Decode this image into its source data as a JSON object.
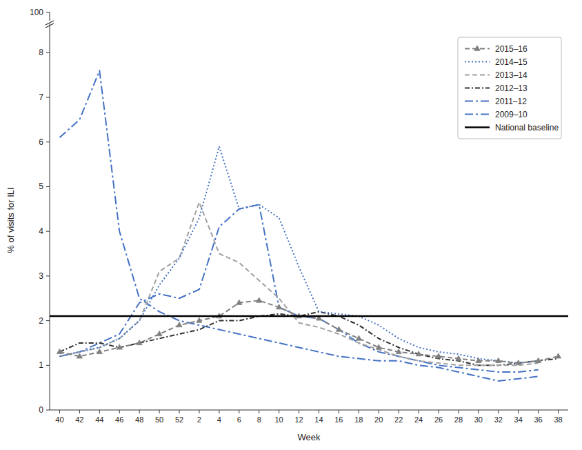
{
  "chart_data": {
    "type": "line",
    "xlabel": "Week",
    "ylabel": "% of visits for ILI",
    "categories": [
      "40",
      "42",
      "44",
      "46",
      "48",
      "50",
      "52",
      "2",
      "4",
      "6",
      "8",
      "10",
      "12",
      "14",
      "16",
      "18",
      "20",
      "22",
      "24",
      "26",
      "28",
      "30",
      "32",
      "34",
      "36",
      "38"
    ],
    "ylim": [
      0,
      8.5
    ],
    "yticks": [
      0,
      1,
      2,
      3,
      4,
      5,
      6,
      7,
      8
    ],
    "grid": false,
    "legend": "upper right",
    "series": [
      {
        "name": "2009–10",
        "color": "#4472C4",
        "line_style": "longdashdot",
        "values": [
          6.1,
          6.5,
          7.6,
          4.0,
          2.5,
          2.2,
          2.0,
          1.9,
          1.8,
          1.7,
          1.6,
          1.5,
          1.4,
          1.3,
          1.2,
          1.15,
          1.1,
          1.1,
          1.0,
          0.95,
          0.85,
          0.75,
          0.65,
          0.7,
          0.75,
          null
        ]
      },
      {
        "name": "2011–12",
        "color": "#4472C4",
        "line_style": "longdashdot",
        "values": [
          1.2,
          1.3,
          1.5,
          1.7,
          2.4,
          2.6,
          2.5,
          2.7,
          4.1,
          4.5,
          4.6,
          2.3,
          2.1,
          2.05,
          1.8,
          1.5,
          1.3,
          1.2,
          1.1,
          1.0,
          0.95,
          0.9,
          0.85,
          0.85,
          0.9,
          null
        ]
      },
      {
        "name": "2012–13",
        "color": "#303030",
        "line_style": "dashdot",
        "values": [
          1.3,
          1.5,
          1.5,
          1.4,
          1.5,
          1.6,
          1.7,
          1.8,
          2.0,
          2.0,
          2.1,
          2.15,
          2.1,
          2.2,
          2.1,
          1.9,
          1.6,
          1.4,
          1.25,
          1.15,
          1.1,
          1.0,
          1.0,
          1.05,
          1.1,
          1.15
        ]
      },
      {
        "name": "2013–14",
        "color": "#A0A0A0",
        "line_style": "dashed",
        "values": [
          1.2,
          1.3,
          1.4,
          1.6,
          2.0,
          3.1,
          3.4,
          4.65,
          3.5,
          3.3,
          2.9,
          2.5,
          1.95,
          1.85,
          1.7,
          1.5,
          1.35,
          1.2,
          1.1,
          1.05,
          1.0,
          1.0,
          1.0,
          1.0,
          1.05,
          null
        ]
      },
      {
        "name": "2014–15",
        "color": "#4472C4",
        "line_style": "dotted",
        "values": [
          1.2,
          1.3,
          1.4,
          1.6,
          2.0,
          2.8,
          3.4,
          4.3,
          5.9,
          4.5,
          4.6,
          4.3,
          3.2,
          2.2,
          2.15,
          2.1,
          1.9,
          1.6,
          1.4,
          1.3,
          1.25,
          1.15,
          1.1,
          1.05,
          1.1,
          null
        ]
      },
      {
        "name": "2015–16",
        "color": "#808080",
        "line_style": "dashed",
        "marker": "triangle",
        "values": [
          1.3,
          1.2,
          1.3,
          1.4,
          1.5,
          1.7,
          1.9,
          2.0,
          2.1,
          2.4,
          2.45,
          2.3,
          2.1,
          2.05,
          1.8,
          1.6,
          1.4,
          1.3,
          1.25,
          1.2,
          1.15,
          1.1,
          1.1,
          1.05,
          1.1,
          1.2
        ]
      }
    ],
    "baseline": {
      "name": "National baseline",
      "value": 2.1,
      "color": "#000000"
    },
    "annotations": [
      {
        "text": "100"
      }
    ]
  }
}
